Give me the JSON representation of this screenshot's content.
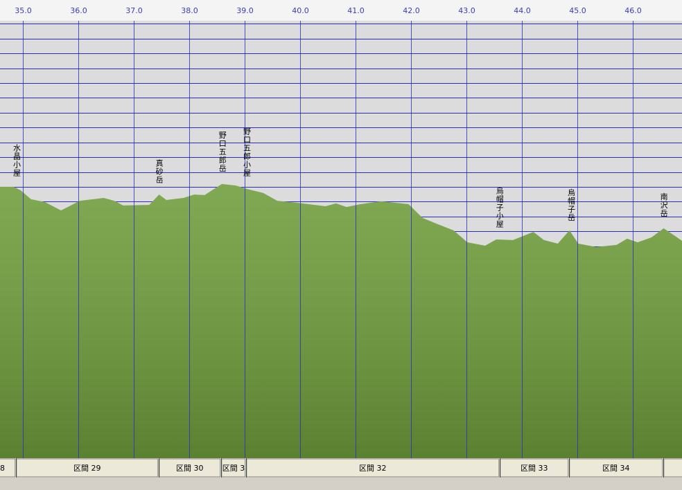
{
  "chart_data": {
    "type": "area",
    "x": [
      34.59,
      34.84,
      34.96,
      35.15,
      35.4,
      35.69,
      35.84,
      36.03,
      36.46,
      36.65,
      36.81,
      37.28,
      37.46,
      37.59,
      37.9,
      38.09,
      38.28,
      38.59,
      38.84,
      39.09,
      39.34,
      39.59,
      39.96,
      40.46,
      40.65,
      40.84,
      41.09,
      41.46,
      41.96,
      42.21,
      42.46,
      42.77,
      43.02,
      43.34,
      43.54,
      43.84,
      44.21,
      44.4,
      44.65,
      44.86,
      45.02,
      45.34,
      45.71,
      45.9,
      46.09,
      46.34,
      46.56,
      46.89
    ],
    "values": [
      2900,
      2900,
      2877,
      2816,
      2797,
      2741,
      2769,
      2806,
      2825,
      2806,
      2774,
      2778,
      2848,
      2811,
      2825,
      2848,
      2844,
      2919,
      2909,
      2881,
      2858,
      2806,
      2792,
      2769,
      2788,
      2764,
      2783,
      2802,
      2783,
      2690,
      2652,
      2606,
      2526,
      2503,
      2545,
      2541,
      2596,
      2541,
      2517,
      2606,
      2517,
      2494,
      2508,
      2550,
      2526,
      2559,
      2620,
      2536
    ],
    "color": "#6f9d3b",
    "xlim": [
      34.59,
      46.89
    ],
    "xticks": [
      {
        "value": 35,
        "label": "35.0"
      },
      {
        "value": 36,
        "label": "36.0"
      },
      {
        "value": 37,
        "label": "37.0"
      },
      {
        "value": 38,
        "label": "38.0"
      },
      {
        "value": 39,
        "label": "39.0"
      },
      {
        "value": 40,
        "label": "40.0"
      },
      {
        "value": 41,
        "label": "41.0"
      },
      {
        "value": 42,
        "label": "42.0"
      },
      {
        "value": 43,
        "label": "43.0"
      },
      {
        "value": 44,
        "label": "44.0"
      },
      {
        "value": 45,
        "label": "45.0"
      },
      {
        "value": 46,
        "label": "46.0"
      }
    ],
    "ylim": [
      1070,
      4020
    ],
    "yticks": [
      1100,
      1200,
      1300,
      1400,
      1500,
      1600,
      1700,
      1800,
      1900,
      2000,
      2100,
      2200,
      2300,
      2400,
      2500,
      2600,
      2700,
      2800,
      2900,
      3000,
      3100,
      3200,
      3300,
      3400,
      3500,
      3600,
      3700,
      3800,
      3900,
      4000
    ],
    "grid": true,
    "annotations": [
      {
        "text": "水晶小屋",
        "x": 34.89
      },
      {
        "text": "真砂岳",
        "x": 37.46
      },
      {
        "text": "野口五郎岳",
        "x": 38.6
      },
      {
        "text": "野口五郎小屋",
        "x": 39.04
      },
      {
        "text": "烏帽子小屋",
        "x": 43.6
      },
      {
        "text": "烏帽子岳",
        "x": 44.89
      },
      {
        "text": "南沢岳",
        "x": 46.56
      }
    ],
    "sections": {
      "names": [
        "8",
        "区間 29",
        "区間 30",
        "区間 3",
        "区間 32",
        "区間 33",
        "区間 34",
        null
      ],
      "edges": [
        34.875,
        37.45,
        38.575,
        39.025,
        43.6,
        44.85,
        46.55
      ]
    }
  }
}
